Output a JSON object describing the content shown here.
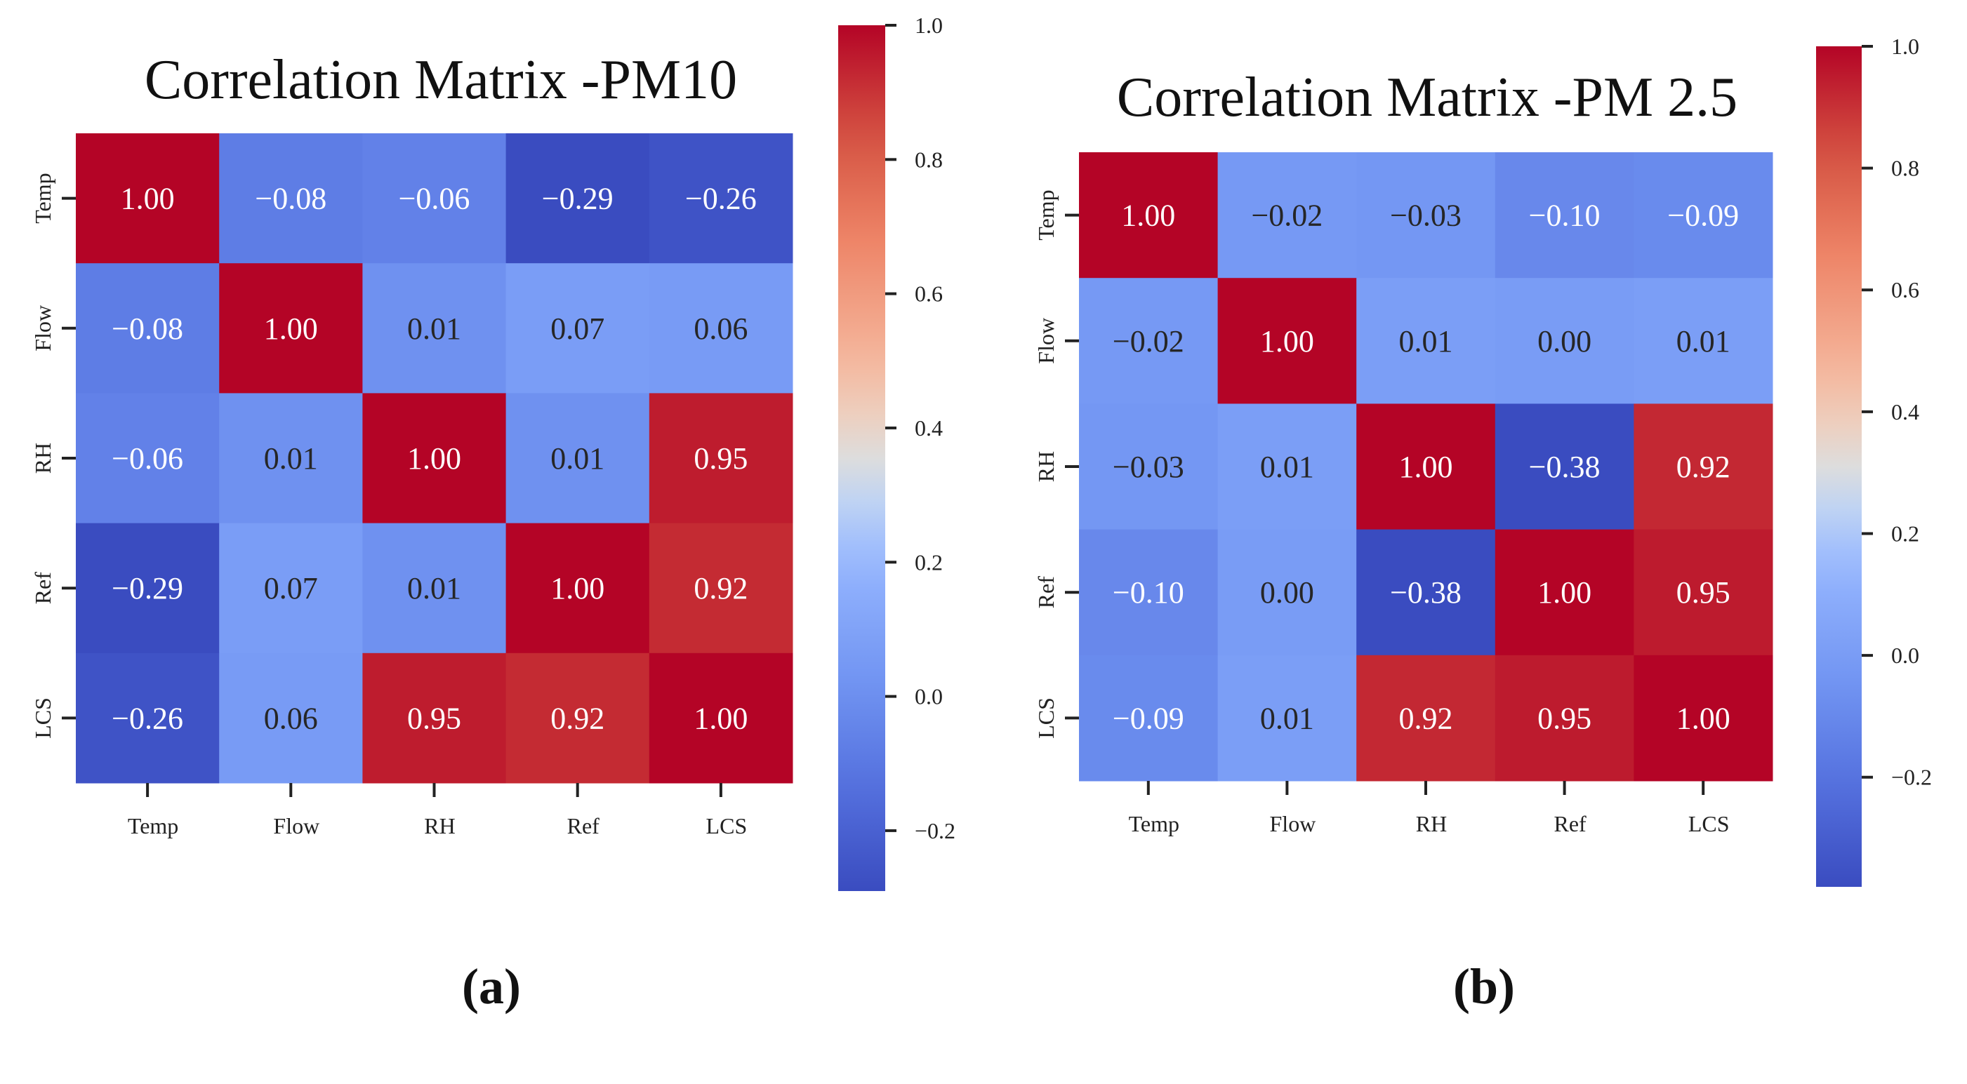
{
  "chart_data": [
    {
      "type": "heatmap",
      "panel_label": "(a)",
      "title": "Correlation Matrix -PM10",
      "xlabel": "",
      "ylabel": "",
      "row_labels": [
        "Temp",
        "Flow",
        "RH",
        "Ref",
        "LCS"
      ],
      "col_labels": [
        "Temp",
        "Flow",
        "RH",
        "Ref",
        "LCS"
      ],
      "values": [
        [
          1.0,
          -0.08,
          -0.06,
          -0.29,
          -0.26
        ],
        [
          -0.08,
          1.0,
          0.01,
          0.07,
          0.06
        ],
        [
          -0.06,
          0.01,
          1.0,
          0.01,
          0.95
        ],
        [
          -0.29,
          0.07,
          0.01,
          1.0,
          0.92
        ],
        [
          -0.26,
          0.06,
          0.95,
          0.92,
          1.0
        ]
      ],
      "colormap": "coolwarm",
      "vmin": -0.29,
      "vmax": 1.0,
      "colorbar_ticks": [
        1.0,
        0.8,
        0.6,
        0.4,
        0.2,
        0.0,
        -0.2
      ],
      "colorbar_tick_labels": [
        "1.0",
        "0.8",
        "0.6",
        "0.4",
        "0.2",
        "0.0",
        "−0.2"
      ]
    },
    {
      "type": "heatmap",
      "panel_label": "(b)",
      "title": "Correlation Matrix -PM 2.5",
      "xlabel": "",
      "ylabel": "",
      "row_labels": [
        "Temp",
        "Flow",
        "RH",
        "Ref",
        "LCS"
      ],
      "col_labels": [
        "Temp",
        "Flow",
        "RH",
        "Ref",
        "LCS"
      ],
      "values": [
        [
          1.0,
          -0.02,
          -0.03,
          -0.1,
          -0.09
        ],
        [
          -0.02,
          1.0,
          0.01,
          0.0,
          0.01
        ],
        [
          -0.03,
          0.01,
          1.0,
          -0.38,
          0.92
        ],
        [
          -0.1,
          0.0,
          -0.38,
          1.0,
          0.95
        ],
        [
          -0.09,
          0.01,
          0.92,
          0.95,
          1.0
        ]
      ],
      "colormap": "coolwarm",
      "vmin": -0.38,
      "vmax": 1.0,
      "colorbar_ticks": [
        1.0,
        0.8,
        0.6,
        0.4,
        0.2,
        0.0,
        -0.2
      ],
      "colorbar_tick_labels": [
        "1.0",
        "0.8",
        "0.6",
        "0.4",
        "0.2",
        "0.0",
        "−0.2"
      ]
    }
  ]
}
